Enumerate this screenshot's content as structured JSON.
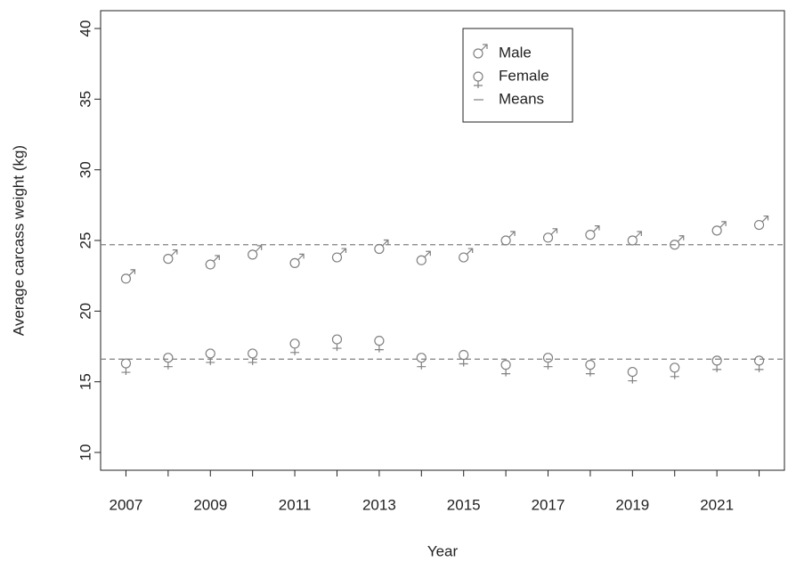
{
  "chart_data": {
    "type": "scatter",
    "xlabel": "Year",
    "ylabel": "Average carcass weight (kg)",
    "x": [
      2007,
      2008,
      2009,
      2010,
      2011,
      2012,
      2013,
      2014,
      2015,
      2016,
      2017,
      2018,
      2019,
      2020,
      2021,
      2022
    ],
    "series": [
      {
        "name": "Male",
        "symbol": "male",
        "color": "#808080",
        "values": [
          22.3,
          23.7,
          23.3,
          24.0,
          23.4,
          23.8,
          24.4,
          23.6,
          23.8,
          25.0,
          25.2,
          25.4,
          25.0,
          24.7,
          25.7,
          26.1
        ]
      },
      {
        "name": "Female",
        "symbol": "female",
        "color": "#808080",
        "values": [
          16.3,
          16.7,
          17.0,
          17.0,
          17.7,
          18.0,
          17.9,
          16.7,
          16.9,
          16.2,
          16.7,
          16.2,
          15.7,
          16.0,
          16.5,
          16.5
        ]
      }
    ],
    "means": {
      "name": "Means",
      "color": "#808080",
      "values": [
        24.7,
        16.6
      ]
    },
    "xlim": [
      2006.4,
      2022.6
    ],
    "ylim": [
      8.74,
      41.26
    ],
    "xticks": [
      2007,
      2009,
      2011,
      2013,
      2015,
      2017,
      2019,
      2021
    ],
    "yticks": [
      10,
      15,
      20,
      25,
      30,
      35,
      40
    ],
    "legend": "top-right"
  }
}
